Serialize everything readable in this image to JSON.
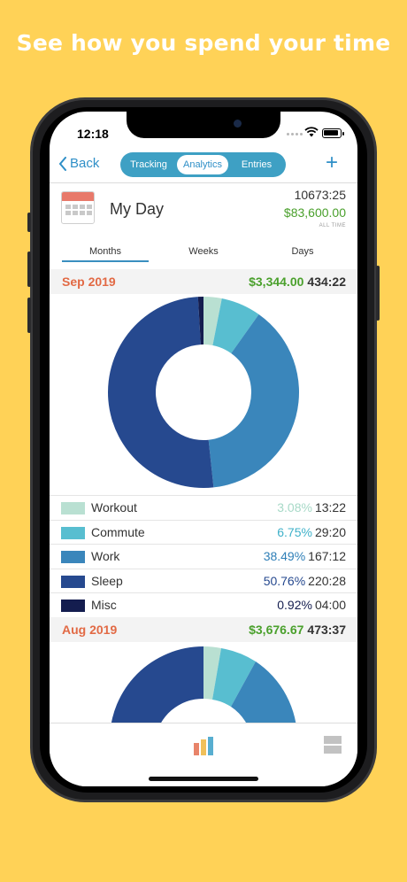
{
  "headline": "See how you spend your time",
  "status_bar": {
    "time": "12:18"
  },
  "nav": {
    "back_label": "Back",
    "tabs": [
      "Tracking",
      "Analytics",
      "Entries"
    ],
    "active_tab": "Analytics",
    "add_icon": "plus-icon"
  },
  "summary": {
    "title": "My Day",
    "total_hours": "10673:25",
    "total_money": "$83,600.00",
    "period_label": "ALL TIME"
  },
  "period_tabs": {
    "items": [
      "Months",
      "Weeks",
      "Days"
    ],
    "active": "Months"
  },
  "months": [
    {
      "name": "Sep 2019",
      "money": "$3,344.00",
      "hours": "434:22",
      "categories": [
        {
          "name": "Workout",
          "percent": "3.08%",
          "hours": "13:22",
          "color": "#b9e0d2",
          "text_color": "#a7d9c7",
          "value": 3.08
        },
        {
          "name": "Commute",
          "percent": "6.75%",
          "hours": "29:20",
          "color": "#58bed0",
          "text_color": "#3fb1c9",
          "value": 6.75
        },
        {
          "name": "Work",
          "percent": "38.49%",
          "hours": "167:12",
          "color": "#3a86bb",
          "text_color": "#2f7fb7",
          "value": 38.49
        },
        {
          "name": "Sleep",
          "percent": "50.76%",
          "hours": "220:28",
          "color": "#26498f",
          "text_color": "#26498f",
          "value": 50.76
        },
        {
          "name": "Misc",
          "percent": "0.92%",
          "hours": "04:00",
          "color": "#141d4f",
          "text_color": "#141d4f",
          "value": 0.92
        }
      ]
    },
    {
      "name": "Aug 2019",
      "money": "$3,676.67",
      "hours": "473:37"
    }
  ],
  "chart_data": {
    "type": "pie",
    "categories": [
      "Workout",
      "Commute",
      "Work",
      "Sleep",
      "Misc"
    ],
    "values": [
      3.08,
      6.75,
      38.49,
      50.76,
      0.92
    ],
    "colors": [
      "#b9e0d2",
      "#58bed0",
      "#3a86bb",
      "#26498f",
      "#141d4f"
    ],
    "title": "Sep 2019"
  },
  "bottom_bar": {
    "icons": [
      "bar-chart-icon",
      "layout-icon"
    ]
  },
  "colors": {
    "background": "#ffd257",
    "accent": "#3ea0c4",
    "money": "#4aa02c",
    "month": "#e26a45"
  }
}
